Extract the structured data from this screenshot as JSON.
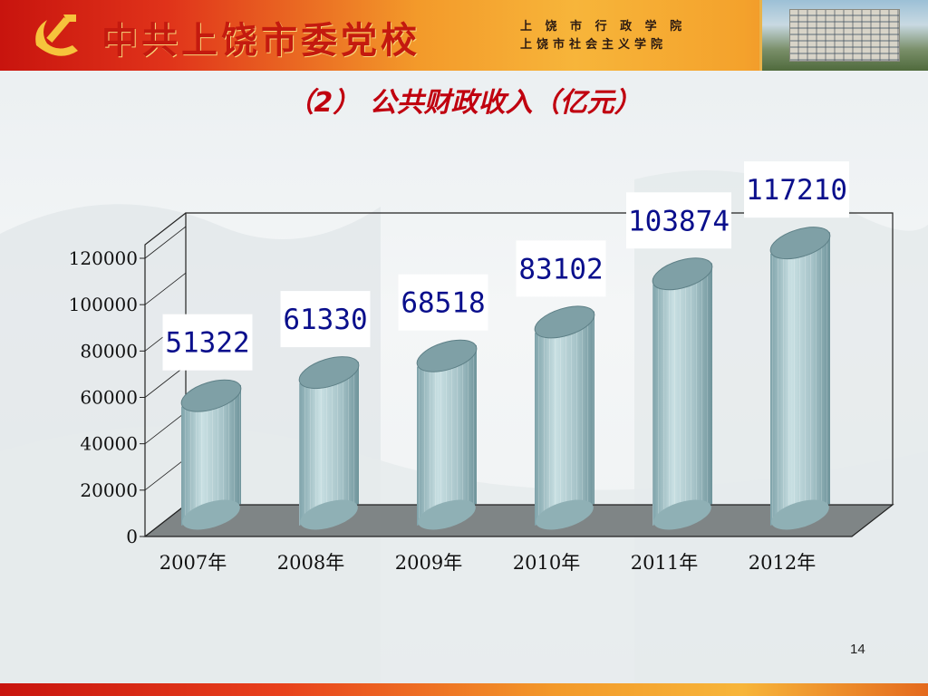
{
  "header": {
    "school_name": "中共上饶市委党校",
    "sub_name_1": "上 饶 市 行 政 学 院",
    "sub_name_2": "上饶市社会主义学院"
  },
  "slide": {
    "title": "（2） 公共财政收入（亿元）",
    "page_number": "14"
  },
  "colors": {
    "brand_red": "#c8140e",
    "title_red": "#c0000f",
    "label_blue": "#0a0f8c",
    "bar_fill": "#a9c6cc"
  },
  "chart_data": {
    "type": "bar",
    "categories": [
      "2007年",
      "2008年",
      "2009年",
      "2010年",
      "2011年",
      "2012年"
    ],
    "values": [
      51322,
      61330,
      68518,
      83102,
      103874,
      117210
    ],
    "data_labels": [
      "51322",
      "61330",
      "68518",
      "83102",
      "103874",
      "117210"
    ],
    "yticks": [
      "0",
      "20000",
      "40000",
      "60000",
      "80000",
      "100000",
      "120000"
    ],
    "ylim": [
      0,
      120000
    ],
    "title": "",
    "xlabel": "",
    "ylabel": "",
    "style": "3d-cylinder"
  }
}
